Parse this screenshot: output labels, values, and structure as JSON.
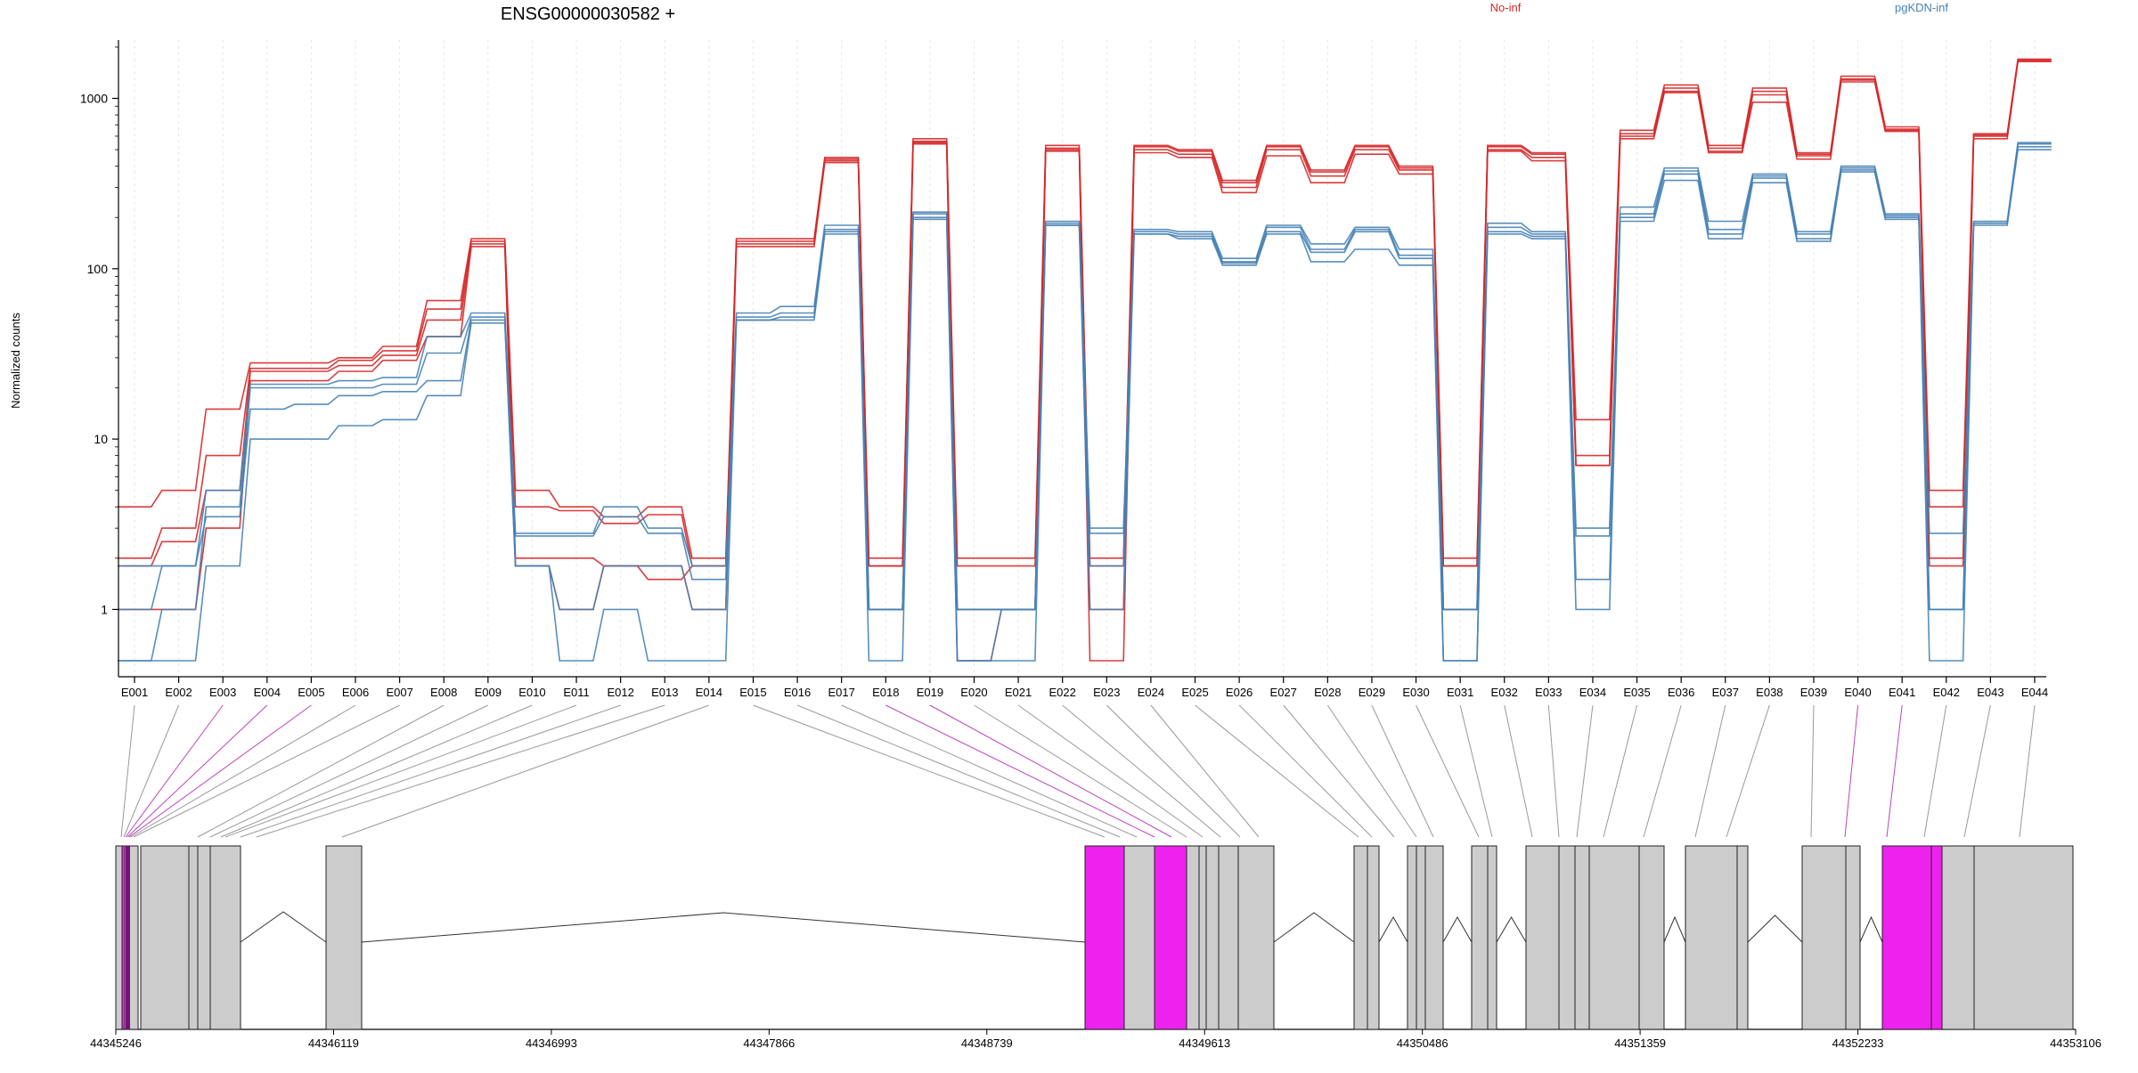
{
  "chart_data": {
    "type": "line",
    "title": "ENSG00000030582 +",
    "ylabel": "Normalized counts",
    "xlabel": "",
    "yscale": "log",
    "ylim": [
      0.5,
      2200
    ],
    "yticks": [
      1,
      10,
      100,
      1000
    ],
    "ytick_labels": [
      "1",
      "10",
      "100",
      "1000"
    ],
    "legend_position": "top-right",
    "legend": [
      {
        "label": "No-inf",
        "color": "#d62728"
      },
      {
        "label": "pgKDN-inf",
        "color": "#4682b4"
      }
    ],
    "categories": [
      "E001",
      "E002",
      "E003",
      "E004",
      "E005",
      "E006",
      "E007",
      "E008",
      "E009",
      "E010",
      "E011",
      "E012",
      "E013",
      "E014",
      "E015",
      "E016",
      "E017",
      "E018",
      "E019",
      "E020",
      "E021",
      "E022",
      "E023",
      "E024",
      "E025",
      "E026",
      "E027",
      "E028",
      "E029",
      "E030",
      "E031",
      "E032",
      "E033",
      "E034",
      "E035",
      "E036",
      "E037",
      "E038",
      "E039",
      "E040",
      "E041",
      "E042",
      "E043",
      "E044"
    ],
    "series": [
      {
        "group": "No-inf",
        "color": "#d62728",
        "values": [
          4,
          5,
          15,
          28,
          28,
          30,
          35,
          65,
          150,
          5,
          4,
          3.5,
          4,
          2,
          150,
          150,
          450,
          2,
          580,
          2,
          2,
          530,
          2,
          530,
          500,
          330,
          530,
          380,
          530,
          400,
          2,
          530,
          480,
          13,
          650,
          1200,
          530,
          1150,
          480,
          1350,
          680,
          5,
          620,
          1700
        ]
      },
      {
        "group": "No-inf",
        "color": "#d62728",
        "values": [
          2,
          3,
          8,
          26,
          26,
          29,
          33,
          58,
          145,
          4,
          3.8,
          3.2,
          3.6,
          1.8,
          145,
          145,
          440,
          1.8,
          560,
          1.8,
          1.8,
          510,
          1.8,
          520,
          490,
          320,
          520,
          370,
          520,
          390,
          1.8,
          520,
          470,
          8,
          620,
          1150,
          510,
          1100,
          470,
          1300,
          660,
          4,
          610,
          1680
        ]
      },
      {
        "group": "No-inf",
        "color": "#d62728",
        "values": [
          1.8,
          2.5,
          5,
          25,
          25,
          27,
          31,
          50,
          140,
          2,
          2,
          1.8,
          1.8,
          1,
          140,
          140,
          430,
          1,
          550,
          1,
          1,
          500,
          1,
          500,
          470,
          300,
          500,
          350,
          500,
          380,
          1,
          500,
          450,
          7,
          600,
          1100,
          490,
          1050,
          460,
          1280,
          650,
          2,
          600,
          1650
        ]
      },
      {
        "group": "No-inf",
        "color": "#d62728",
        "values": [
          1,
          1,
          3,
          22,
          22,
          25,
          29,
          40,
          135,
          1.8,
          1,
          1.8,
          1.5,
          1.8,
          135,
          135,
          420,
          1.8,
          540,
          0.5,
          1,
          490,
          0.5,
          480,
          450,
          280,
          460,
          320,
          470,
          360,
          1.8,
          490,
          430,
          7,
          580,
          1080,
          480,
          950,
          440,
          1250,
          640,
          1.8,
          580,
          1650
        ]
      },
      {
        "group": "pgKDN-inf",
        "color": "#4682b4",
        "values": [
          1,
          1.8,
          5,
          21,
          21,
          22,
          23,
          40,
          55,
          2.8,
          2.8,
          4,
          3,
          1.8,
          55,
          60,
          180,
          1,
          215,
          1,
          1,
          190,
          3,
          170,
          165,
          115,
          180,
          140,
          175,
          130,
          1,
          185,
          165,
          3,
          230,
          390,
          190,
          360,
          165,
          400,
          210,
          2.8,
          190,
          550
        ]
      },
      {
        "group": "pgKDN-inf",
        "color": "#4682b4",
        "values": [
          0.5,
          1,
          4,
          20,
          20,
          20,
          21,
          32,
          52,
          2.7,
          2.7,
          3.5,
          2.8,
          1.5,
          52,
          55,
          170,
          1,
          210,
          1,
          1,
          185,
          2.8,
          165,
          160,
          110,
          175,
          130,
          170,
          120,
          1,
          175,
          160,
          2.7,
          210,
          375,
          170,
          350,
          160,
          390,
          205,
          1,
          185,
          540
        ]
      },
      {
        "group": "pgKDN-inf",
        "color": "#4682b4",
        "values": [
          1.8,
          1.8,
          3.5,
          15,
          16,
          18,
          19,
          22,
          50,
          1.8,
          1,
          1.8,
          1.8,
          1,
          50,
          52,
          165,
          1,
          200,
          0.5,
          1,
          180,
          1.8,
          160,
          155,
          108,
          165,
          125,
          165,
          115,
          0.5,
          165,
          155,
          1.5,
          200,
          360,
          160,
          340,
          150,
          380,
          200,
          1,
          185,
          520
        ]
      },
      {
        "group": "pgKDN-inf",
        "color": "#4682b4",
        "values": [
          0.5,
          0.5,
          1.8,
          10,
          10,
          12,
          13,
          18,
          48,
          1.8,
          0.5,
          1,
          0.5,
          0.5,
          50,
          50,
          160,
          0.5,
          195,
          0.5,
          0.5,
          180,
          1,
          160,
          150,
          105,
          160,
          110,
          130,
          105,
          0.5,
          160,
          150,
          1,
          190,
          330,
          150,
          320,
          145,
          370,
          195,
          0.5,
          180,
          500
        ]
      }
    ],
    "gene_model": {
      "coordinate_ticks": [
        "44345246",
        "44346119",
        "44346993",
        "44347866",
        "44348739",
        "44349613",
        "44350486",
        "44351359",
        "44352233",
        "44353106"
      ],
      "highlight_color": "#ee22ee",
      "exon_color": "#cccccc",
      "highlighted_exons": [
        "E003",
        "E004",
        "E005",
        "E018",
        "E019",
        "E040",
        "E041"
      ]
    }
  }
}
